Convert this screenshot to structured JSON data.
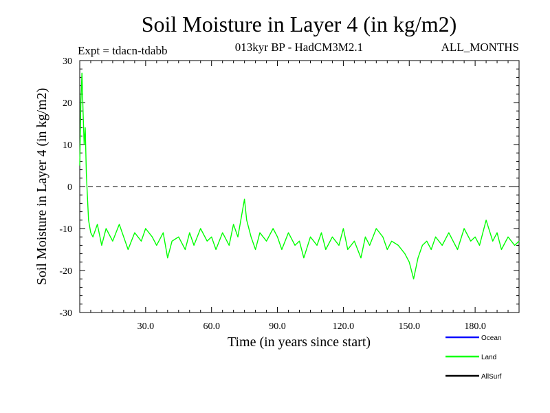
{
  "title": "Soil Moisture in Layer 4 (in kg/m2)",
  "subtitle_left": "Expt = tdacn-tdabb",
  "subtitle_center": "013kyr BP - HadCM3M2.1",
  "subtitle_right": "ALL_MONTHS",
  "chart_data": {
    "type": "line",
    "title": "Soil Moisture in Layer 4 (in kg/m2)",
    "xlabel": "Time (in years since start)",
    "ylabel": "Soil Moisture in Layer 4 (in kg/m2)",
    "xlim": [
      0,
      200
    ],
    "ylim": [
      -30,
      30
    ],
    "xticks": [
      30,
      60,
      90,
      120,
      150,
      180
    ],
    "xtick_labels": [
      "30.0",
      "60.0",
      "90.0",
      "120.0",
      "150.0",
      "180.0"
    ],
    "yticks": [
      -30,
      -20,
      -10,
      0,
      10,
      20,
      30
    ],
    "ytick_labels": [
      "-30",
      "-20",
      "-10",
      "0",
      "10",
      "20",
      "30"
    ],
    "reference_line": {
      "y": 0,
      "style": "dashed"
    },
    "legend": {
      "placement": "bottom-right",
      "entries": [
        {
          "name": "Ocean",
          "color": "#0000ff"
        },
        {
          "name": "Land",
          "color": "#00ff00"
        },
        {
          "name": "AllSurf",
          "color": "#000000"
        }
      ]
    },
    "series": [
      {
        "name": "Land",
        "color": "#00ff00",
        "x": [
          0,
          0.5,
          1,
          1.5,
          2,
          2.5,
          3,
          4,
          5,
          6,
          8,
          10,
          12,
          15,
          18,
          20,
          22,
          25,
          28,
          30,
          33,
          35,
          38,
          40,
          42,
          45,
          48,
          50,
          52,
          55,
          58,
          60,
          62,
          65,
          68,
          70,
          72,
          74,
          75,
          76,
          78,
          80,
          82,
          85,
          88,
          90,
          92,
          95,
          98,
          100,
          102,
          105,
          108,
          110,
          112,
          115,
          118,
          120,
          122,
          125,
          128,
          130,
          132,
          135,
          138,
          140,
          142,
          145,
          148,
          150,
          152,
          154,
          156,
          158,
          160,
          162,
          165,
          168,
          170,
          172,
          175,
          178,
          180,
          182,
          185,
          188,
          190,
          192,
          195,
          198,
          200
        ],
        "y": [
          5,
          20,
          27,
          18,
          10,
          14,
          3,
          -8,
          -11,
          -12,
          -9,
          -14,
          -10,
          -13,
          -9,
          -12,
          -15,
          -11,
          -13,
          -10,
          -12,
          -14,
          -11,
          -17,
          -13,
          -12,
          -15,
          -11,
          -14,
          -10,
          -13,
          -12,
          -15,
          -11,
          -14,
          -9,
          -12,
          -6,
          -3,
          -8,
          -12,
          -15,
          -11,
          -13,
          -10,
          -12,
          -15,
          -11,
          -14,
          -13,
          -17,
          -12,
          -14,
          -11,
          -15,
          -12,
          -14,
          -10,
          -15,
          -13,
          -17,
          -12,
          -14,
          -10,
          -12,
          -15,
          -13,
          -14,
          -16,
          -18,
          -22,
          -17,
          -14,
          -13,
          -15,
          -12,
          -14,
          -11,
          -13,
          -15,
          -10,
          -13,
          -12,
          -14,
          -8,
          -13,
          -11,
          -15,
          -12,
          -14,
          -13
        ]
      },
      {
        "name": "Ocean",
        "color": "#0000ff",
        "x": [],
        "y": []
      },
      {
        "name": "AllSurf",
        "color": "#000000",
        "x": [],
        "y": []
      }
    ]
  }
}
